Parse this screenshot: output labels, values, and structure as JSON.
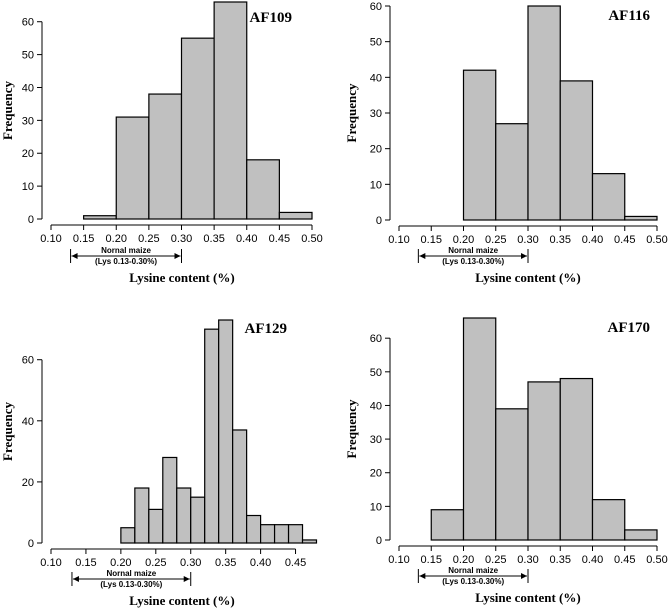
{
  "chart_data": [
    {
      "type": "bar",
      "title": "AF109",
      "xlabel": "Lysine content (%)",
      "ylabel": "Frequency",
      "xlim": [
        0.1,
        0.5
      ],
      "ylim": [
        0,
        66
      ],
      "xticks": [
        "0.10",
        "0.15",
        "0.20",
        "0.25",
        "0.30",
        "0.35",
        "0.40",
        "0.45",
        "0.50"
      ],
      "yticks": [
        "0",
        "10",
        "20",
        "30",
        "40",
        "50",
        "60"
      ],
      "bins": [
        [
          0.15,
          0.2
        ],
        [
          0.2,
          0.25
        ],
        [
          0.25,
          0.3
        ],
        [
          0.3,
          0.35
        ],
        [
          0.35,
          0.4
        ],
        [
          0.4,
          0.45
        ],
        [
          0.45,
          0.5
        ]
      ],
      "values": [
        1,
        31,
        38,
        55,
        66,
        18,
        2
      ],
      "annotation": {
        "line1": "Nornal maize",
        "line2": "(Lys 0.13-0.30%)",
        "range": [
          0.13,
          0.3
        ]
      }
    },
    {
      "type": "bar",
      "title": "AF116",
      "xlabel": "Lysine content (%)",
      "ylabel": "Frequency",
      "xlim": [
        0.1,
        0.5
      ],
      "ylim": [
        0,
        60
      ],
      "xticks": [
        "0.10",
        "0.15",
        "0.20",
        "0.25",
        "0.30",
        "0.35",
        "0.40",
        "0.45",
        "0.50"
      ],
      "yticks": [
        "0",
        "10",
        "20",
        "30",
        "40",
        "50",
        "60"
      ],
      "bins": [
        [
          0.2,
          0.25
        ],
        [
          0.25,
          0.3
        ],
        [
          0.3,
          0.35
        ],
        [
          0.35,
          0.4
        ],
        [
          0.4,
          0.45
        ],
        [
          0.45,
          0.5
        ]
      ],
      "values": [
        42,
        27,
        60,
        39,
        13,
        1
      ],
      "annotation": {
        "line1": "Nornal maize",
        "line2": "(Lys 0.13-0.30%)",
        "range": [
          0.13,
          0.3
        ]
      }
    },
    {
      "type": "bar",
      "title": "AF129",
      "xlabel": "Lysine content (%)",
      "ylabel": "Frequency",
      "xlim": [
        0.1,
        0.475
      ],
      "ylim": [
        0,
        73
      ],
      "xticks": [
        "0.10",
        "0.15",
        "0.20",
        "0.25",
        "0.30",
        "0.35",
        "0.40",
        "0.45"
      ],
      "yticks": [
        "0",
        "20",
        "40",
        "60"
      ],
      "bins": [
        [
          0.2,
          0.22
        ],
        [
          0.22,
          0.24
        ],
        [
          0.24,
          0.26
        ],
        [
          0.26,
          0.28
        ],
        [
          0.28,
          0.3
        ],
        [
          0.3,
          0.32
        ],
        [
          0.32,
          0.34
        ],
        [
          0.34,
          0.36
        ],
        [
          0.36,
          0.38
        ],
        [
          0.38,
          0.4
        ],
        [
          0.4,
          0.42
        ],
        [
          0.42,
          0.44
        ],
        [
          0.44,
          0.46
        ],
        [
          0.46,
          0.48
        ]
      ],
      "values": [
        5,
        18,
        11,
        28,
        18,
        15,
        70,
        73,
        37,
        9,
        6,
        6,
        6,
        1
      ],
      "annotation": {
        "line1": "Nornal maize",
        "line2": "(Lys 0.13-0.30%)",
        "range": [
          0.13,
          0.3
        ]
      }
    },
    {
      "type": "bar",
      "title": "AF170",
      "xlabel": "Lysine content (%)",
      "ylabel": "Frequency",
      "xlim": [
        0.1,
        0.5
      ],
      "ylim": [
        0,
        66
      ],
      "xticks": [
        "0.10",
        "0.15",
        "0.20",
        "0.25",
        "0.30",
        "0.35",
        "0.40",
        "0.45",
        "0.50"
      ],
      "yticks": [
        "0",
        "10",
        "20",
        "30",
        "40",
        "50",
        "60"
      ],
      "bins": [
        [
          0.15,
          0.2
        ],
        [
          0.2,
          0.25
        ],
        [
          0.25,
          0.3
        ],
        [
          0.3,
          0.35
        ],
        [
          0.35,
          0.4
        ],
        [
          0.4,
          0.45
        ],
        [
          0.45,
          0.5
        ]
      ],
      "values": [
        9,
        66,
        39,
        47,
        48,
        12,
        3
      ],
      "annotation": {
        "line1": "Nornal maize",
        "line2": "(Lys 0.13-0.30%)",
        "range": [
          0.13,
          0.3
        ]
      }
    }
  ]
}
